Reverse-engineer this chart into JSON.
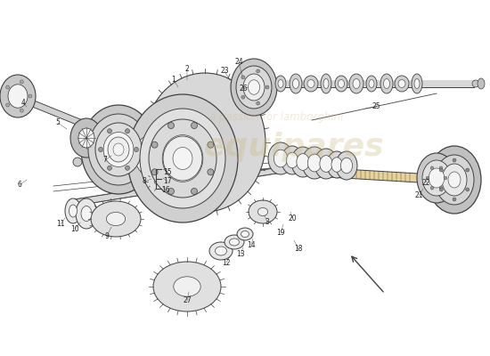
{
  "bg_color": "#ffffff",
  "line_color": "#404040",
  "part_color": "#e8e8e8",
  "part_color2": "#d0d0d0",
  "shaft_fill": "#d8d8d8",
  "gear_fill": "#e0e0e0",
  "watermark1": "equipares",
  "watermark2": "a passion for lamborghini",
  "wm_color": "#c8b87a",
  "label_color": "#222222",
  "label_fs": 5.5,
  "arrow_color": "#333333"
}
